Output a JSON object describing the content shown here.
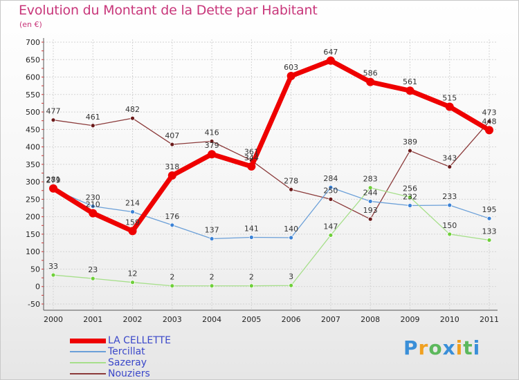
{
  "chart_data": {
    "type": "line",
    "title": "Evolution du Montant de la Dette par Habitant",
    "subtitle": "(en €)",
    "x": [
      "2000",
      "2001",
      "2002",
      "2003",
      "2004",
      "2005",
      "2006",
      "2007",
      "2008",
      "2009",
      "2010",
      "2011"
    ],
    "yticks": [
      "-50",
      "0",
      "50",
      "100",
      "150",
      "200",
      "250",
      "300",
      "350",
      "400",
      "450",
      "500",
      "550",
      "600",
      "650",
      "700"
    ],
    "ylim": [
      -50,
      700
    ],
    "grid": true,
    "legend_position": "bottom-left",
    "series": [
      {
        "name": "LA CELLETTE",
        "color": "#ee0000",
        "width": 7,
        "marker": "#ee0000",
        "values": [
          281,
          210,
          159,
          318,
          379,
          344,
          603,
          647,
          586,
          561,
          515,
          448
        ],
        "labels": [
          "281",
          "210",
          "159",
          "318",
          "379",
          "344",
          "603",
          "647",
          "586",
          "561",
          "515",
          "448"
        ]
      },
      {
        "name": "Tercillat",
        "color": "#6a9fd8",
        "width": 1.3,
        "marker": "#3b82d6",
        "values": [
          279,
          230,
          214,
          176,
          137,
          141,
          140,
          284,
          244,
          232,
          233,
          195
        ],
        "labels": [
          "279",
          "230",
          "214",
          "176",
          "137",
          "141",
          "140",
          "284",
          "244",
          "232",
          "233",
          "195"
        ]
      },
      {
        "name": "Sazeray",
        "color": "#a6df8a",
        "width": 1.3,
        "marker": "#6fcf3a",
        "values": [
          33,
          23,
          12,
          2,
          2,
          2,
          3,
          147,
          283,
          256,
          150,
          133
        ],
        "labels": [
          "33",
          "23",
          "12",
          "2",
          "2",
          "2",
          "3",
          "147",
          "283",
          "256",
          "150",
          "133"
        ]
      },
      {
        "name": "Nouziers",
        "color": "#8b3a3a",
        "width": 1.3,
        "marker": "#6a1a1a",
        "values": [
          477,
          461,
          482,
          407,
          416,
          361,
          278,
          250,
          193,
          389,
          343,
          473
        ],
        "labels": [
          "477",
          "461",
          "482",
          "407",
          "416",
          "361",
          "278",
          "250",
          "193",
          "389",
          "343",
          "473"
        ]
      }
    ]
  },
  "logo": {
    "letters": [
      "P",
      "r",
      "o",
      "x",
      "i",
      "t",
      "i"
    ],
    "colors": [
      "#3a8fd8",
      "#f0a020",
      "#5cb85c",
      "#3a8fd8",
      "#f0a020",
      "#5cb85c",
      "#3a8fd8"
    ]
  }
}
